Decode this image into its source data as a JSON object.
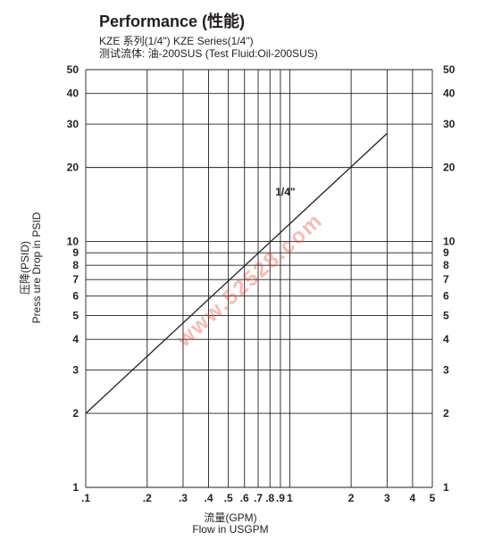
{
  "header": {
    "title": "Performance (性能)",
    "subtitle_line1": "KZE 系列(1/4\")    KZE Series(1/4\")",
    "subtitle_line2": "测试流体: 油-200SUS    (Test Fluid:Oil-200SUS)"
  },
  "watermark": "www.52528.com",
  "chart_data": {
    "type": "line",
    "title": "Performance (性能)",
    "xlabel": "流量(GPM)\nFlow in USGPM",
    "ylabel": "压降(PSID)\nPress ure Drop in PSID",
    "xscale": "log",
    "yscale": "log",
    "xlim": [
      0.1,
      5
    ],
    "ylim": [
      1,
      50
    ],
    "x_ticks": [
      {
        "v": 0.1,
        "label": ".1"
      },
      {
        "v": 0.2,
        "label": ".2"
      },
      {
        "v": 0.3,
        "label": ".3"
      },
      {
        "v": 0.4,
        "label": ".4"
      },
      {
        "v": 0.5,
        "label": ".5"
      },
      {
        "v": 0.6,
        "label": ".6"
      },
      {
        "v": 0.7,
        "label": ".7"
      },
      {
        "v": 0.8,
        "label": ".8"
      },
      {
        "v": 0.9,
        "label": ".9"
      },
      {
        "v": 1,
        "label": "1"
      },
      {
        "v": 2,
        "label": "2"
      },
      {
        "v": 3,
        "label": "3"
      },
      {
        "v": 4,
        "label": "4"
      },
      {
        "v": 5,
        "label": "5"
      }
    ],
    "y_ticks": [
      {
        "v": 1,
        "label": "1"
      },
      {
        "v": 2,
        "label": "2"
      },
      {
        "v": 3,
        "label": "3"
      },
      {
        "v": 4,
        "label": "4"
      },
      {
        "v": 5,
        "label": "5"
      },
      {
        "v": 6,
        "label": "6"
      },
      {
        "v": 7,
        "label": "7"
      },
      {
        "v": 8,
        "label": "8"
      },
      {
        "v": 9,
        "label": "9"
      },
      {
        "v": 10,
        "label": "10"
      },
      {
        "v": 20,
        "label": "20"
      },
      {
        "v": 30,
        "label": "30"
      },
      {
        "v": 40,
        "label": "40"
      },
      {
        "v": 50,
        "label": "50"
      }
    ],
    "grid": true,
    "series": [
      {
        "name": "1/4\"",
        "x": [
          0.1,
          3
        ],
        "y": [
          2.0,
          27.5
        ],
        "color": "#231f20"
      }
    ]
  }
}
